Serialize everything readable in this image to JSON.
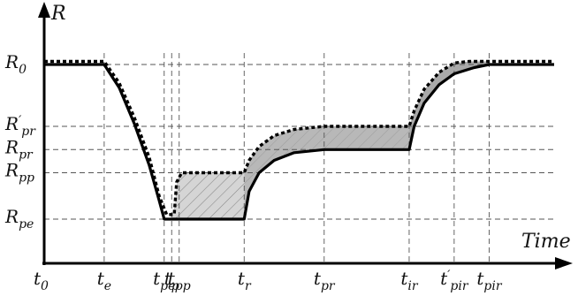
{
  "axes": {
    "y_label": "R",
    "x_label": "Time"
  },
  "y_levels": [
    {
      "key": "R0",
      "base": "R",
      "sub": "0",
      "prime": false,
      "value": 1.0
    },
    {
      "key": "Rpr_",
      "base": "R",
      "sub": "pr",
      "prime": true,
      "value": 0.6
    },
    {
      "key": "Rpr",
      "base": "R",
      "sub": "pr",
      "prime": false,
      "value": 0.45
    },
    {
      "key": "Rpp",
      "base": "R",
      "sub": "pp",
      "prime": false,
      "value": 0.3
    },
    {
      "key": "Rpe",
      "base": "R",
      "sub": "pe",
      "prime": false,
      "value": 0.0
    }
  ],
  "x_ticks": [
    {
      "key": "t0",
      "base": "t",
      "sub": "0",
      "prime": false,
      "value": 0.0
    },
    {
      "key": "te",
      "base": "t",
      "sub": "e",
      "prime": false,
      "value": 1.2
    },
    {
      "key": "tpe",
      "base": "t",
      "sub": "pe",
      "prime": false,
      "value": 2.4
    },
    {
      "key": "tp",
      "base": "t",
      "sub": "p",
      "prime": false,
      "value": 2.55
    },
    {
      "key": "tpp",
      "base": "t",
      "sub": "pp",
      "prime": false,
      "value": 2.7
    },
    {
      "key": "tr",
      "base": "t",
      "sub": "r",
      "prime": false,
      "value": 4.0
    },
    {
      "key": "tpr",
      "base": "t",
      "sub": "pr",
      "prime": false,
      "value": 5.6
    },
    {
      "key": "tir",
      "base": "t",
      "sub": "ir",
      "prime": false,
      "value": 7.3
    },
    {
      "key": "tpir_",
      "base": "t",
      "sub": "pir",
      "prime": true,
      "value": 8.2
    },
    {
      "key": "tpir",
      "base": "t",
      "sub": "pir",
      "prime": false,
      "value": 8.9
    }
  ],
  "curves": {
    "solid": [
      [
        0.0,
        1.0
      ],
      [
        1.2,
        1.0
      ],
      [
        1.5,
        0.85
      ],
      [
        1.8,
        0.62
      ],
      [
        2.1,
        0.35
      ],
      [
        2.3,
        0.12
      ],
      [
        2.4,
        0.0
      ],
      [
        4.0,
        0.0
      ],
      [
        4.1,
        0.18
      ],
      [
        4.3,
        0.3
      ],
      [
        4.6,
        0.38
      ],
      [
        5.0,
        0.43
      ],
      [
        5.6,
        0.45
      ],
      [
        7.3,
        0.45
      ],
      [
        7.4,
        0.6
      ],
      [
        7.6,
        0.75
      ],
      [
        7.9,
        0.87
      ],
      [
        8.2,
        0.94
      ],
      [
        8.6,
        0.98
      ],
      [
        8.9,
        1.0
      ],
      [
        10.2,
        1.0
      ]
    ],
    "dotted": [
      [
        0.0,
        1.02
      ],
      [
        1.2,
        1.02
      ],
      [
        1.5,
        0.88
      ],
      [
        1.8,
        0.66
      ],
      [
        2.1,
        0.4
      ],
      [
        2.3,
        0.15
      ],
      [
        2.45,
        0.03
      ],
      [
        2.6,
        0.03
      ],
      [
        2.65,
        0.24
      ],
      [
        2.75,
        0.3
      ],
      [
        4.0,
        0.3
      ],
      [
        4.1,
        0.38
      ],
      [
        4.3,
        0.47
      ],
      [
        4.6,
        0.54
      ],
      [
        5.0,
        0.58
      ],
      [
        5.6,
        0.6
      ],
      [
        7.3,
        0.6
      ],
      [
        7.4,
        0.7
      ],
      [
        7.6,
        0.84
      ],
      [
        7.9,
        0.95
      ],
      [
        8.2,
        1.01
      ],
      [
        8.5,
        1.02
      ],
      [
        10.2,
        1.02
      ]
    ]
  },
  "range": {
    "x": [
      0,
      10.2
    ],
    "y": [
      0,
      1.02
    ]
  },
  "colors": {
    "shade_dark": "#a9a9a9",
    "shade_light": "#d5d5d5",
    "hatch": "#888888"
  }
}
